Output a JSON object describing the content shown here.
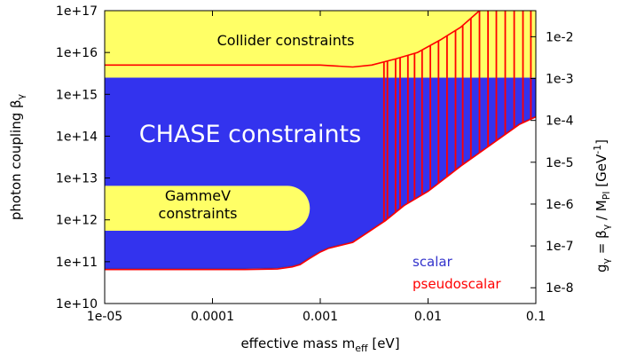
{
  "chart_data": {
    "type": "area",
    "xlabel": "effective mass m",
    "xlabel_sub": "eff",
    "xlabel_unit": " [eV]",
    "ylabel": "photon coupling β",
    "ylabel_sub": "γ",
    "y2label_parts": {
      "g": "g",
      "g_sub": "γ",
      "eq": " = β",
      "beta_sub": "γ",
      "div": " / M",
      "m_sub": "Pl",
      "unit": " [GeV",
      "unit_sup": "-1",
      "close": "]"
    },
    "xscale": "log",
    "yscale": "log",
    "xlim": [
      1e-05,
      0.1
    ],
    "ylim": [
      10000000000.0,
      1e+17
    ],
    "y2lim": [
      4.2e-09,
      0.042
    ],
    "x_ticks": [
      {
        "value": 1e-05,
        "label": "1e-05"
      },
      {
        "value": 0.0001,
        "label": "0.0001"
      },
      {
        "value": 0.001,
        "label": "0.001"
      },
      {
        "value": 0.01,
        "label": "0.01"
      },
      {
        "value": 0.1,
        "label": "0.1"
      }
    ],
    "y_ticks": [
      {
        "value": 10000000000.0,
        "label": "1e+10"
      },
      {
        "value": 100000000000.0,
        "label": "1e+11"
      },
      {
        "value": 1000000000000.0,
        "label": "1e+12"
      },
      {
        "value": 10000000000000.0,
        "label": "1e+13"
      },
      {
        "value": 100000000000000.0,
        "label": "1e+14"
      },
      {
        "value": 1000000000000000.0,
        "label": "1e+15"
      },
      {
        "value": 1e+16,
        "label": "1e+16"
      },
      {
        "value": 1e+17,
        "label": "1e+17"
      }
    ],
    "y2_ticks": [
      {
        "value": 1e-08,
        "label": "1e-8"
      },
      {
        "value": 1e-07,
        "label": "1e-7"
      },
      {
        "value": 1e-06,
        "label": "1e-6"
      },
      {
        "value": 1e-05,
        "label": "1e-5"
      },
      {
        "value": 0.0001,
        "label": "1e-4"
      },
      {
        "value": 0.001,
        "label": "1e-3"
      },
      {
        "value": 0.01,
        "label": "1e-2"
      }
    ],
    "regions": [
      {
        "name": "collider",
        "label": "Collider constraints",
        "color": "#ffff66",
        "y_min": 2500000000000000.0,
        "y_max": 1e+17
      },
      {
        "name": "chase",
        "label": "CHASE constraints",
        "color": "#3333ee",
        "boundary": [
          [
            1e-05,
            70000000000.0
          ],
          [
            0.0002,
            70000000000.0
          ],
          [
            0.0004,
            72000000000.0
          ],
          [
            0.00055,
            80000000000.0
          ],
          [
            0.00065,
            90000000000.0
          ],
          [
            0.0008,
            130000000000.0
          ],
          [
            0.001,
            180000000000.0
          ],
          [
            0.0012,
            220000000000.0
          ],
          [
            0.002,
            300000000000.0
          ],
          [
            0.003,
            600000000000.0
          ],
          [
            0.004,
            1000000000000.0
          ],
          [
            0.006,
            2300000000000.0
          ],
          [
            0.01,
            5000000000000.0
          ],
          [
            0.02,
            20000000000000.0
          ],
          [
            0.04,
            70000000000000.0
          ],
          [
            0.07,
            200000000000000.0
          ],
          [
            0.1,
            300000000000000.0
          ]
        ]
      },
      {
        "name": "gammev",
        "label_lines": [
          "GammeV",
          "constraints"
        ],
        "color": "#ffff66",
        "y_min": 550000000000.0,
        "y_max": 6500000000000.0,
        "x_min": 1e-05,
        "x_max": 0.0008
      }
    ],
    "series": [
      {
        "name": "scalar",
        "color": "#3333cc",
        "boundary_ref": "chase"
      },
      {
        "name": "pseudoscalar",
        "color": "#ff0000",
        "lower": [
          [
            1e-05,
            65000000000.0
          ],
          [
            0.0002,
            65000000000.0
          ],
          [
            0.0004,
            67000000000.0
          ],
          [
            0.00055,
            75000000000.0
          ],
          [
            0.00065,
            85000000000.0
          ],
          [
            0.0008,
            120000000000.0
          ],
          [
            0.001,
            170000000000.0
          ],
          [
            0.0012,
            210000000000.0
          ],
          [
            0.002,
            290000000000.0
          ],
          [
            0.003,
            580000000000.0
          ],
          [
            0.004,
            950000000000.0
          ],
          [
            0.006,
            2200000000000.0
          ],
          [
            0.01,
            4800000000000.0
          ],
          [
            0.02,
            19000000000000.0
          ],
          [
            0.04,
            68000000000000.0
          ],
          [
            0.07,
            190000000000000.0
          ],
          [
            0.1,
            290000000000000.0
          ]
        ],
        "collider_edge": [
          [
            1e-05,
            5000000000000000.0
          ],
          [
            0.0001,
            5000000000000000.0
          ],
          [
            0.001,
            5000000000000000.0
          ],
          [
            0.002,
            4500000000000000.0
          ],
          [
            0.003,
            5000000000000000.0
          ],
          [
            0.005,
            7000000000000000.0
          ],
          [
            0.008,
            1e+16
          ],
          [
            0.013,
            2e+16
          ],
          [
            0.02,
            4e+16
          ],
          [
            0.03,
            1e+17
          ]
        ],
        "spikes_x": [
          0.0039,
          0.0042,
          0.005,
          0.0055,
          0.0065,
          0.0075,
          0.0088,
          0.0105,
          0.0125,
          0.015,
          0.018,
          0.021,
          0.025,
          0.03,
          0.036,
          0.043,
          0.052,
          0.063,
          0.076,
          0.09
        ]
      }
    ],
    "legend": {
      "position": "bottom-right"
    }
  }
}
